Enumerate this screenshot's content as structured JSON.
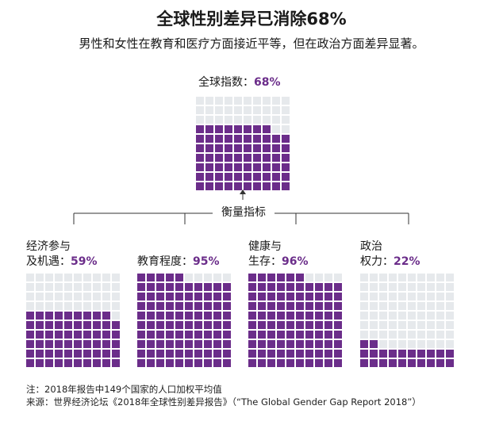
{
  "title": "全球性别差异已消除68%",
  "subtitle": "男性和女性在教育和医疗方面接近平等，但在政治方面差异显著。",
  "connector_label": "衡量指标",
  "colors": {
    "filled": "#6b2d8a",
    "empty": "#e6e9ec",
    "accent": "#6b2d8a"
  },
  "chart_data": {
    "type": "waffle",
    "overall": {
      "label": "全球指数：",
      "value_text": "68%",
      "value": 68
    },
    "indicators": [
      {
        "line1": "经济参与",
        "line2": "及机遇：",
        "value_text": "59%",
        "value": 59
      },
      {
        "line1": "",
        "line2": "教育程度：",
        "value_text": "95%",
        "value": 95
      },
      {
        "line1": "健康与",
        "line2": "生存：",
        "value_text": "96%",
        "value": 96
      },
      {
        "line1": "政治",
        "line2": "权力：",
        "value_text": "22%",
        "value": 22
      }
    ]
  },
  "footnote": "注：2018年报告中149个国家的人口加权平均值",
  "source": "来源：世界经济论坛《2018年全球性别差异报告》（“The Global Gender Gap Report 2018”）"
}
